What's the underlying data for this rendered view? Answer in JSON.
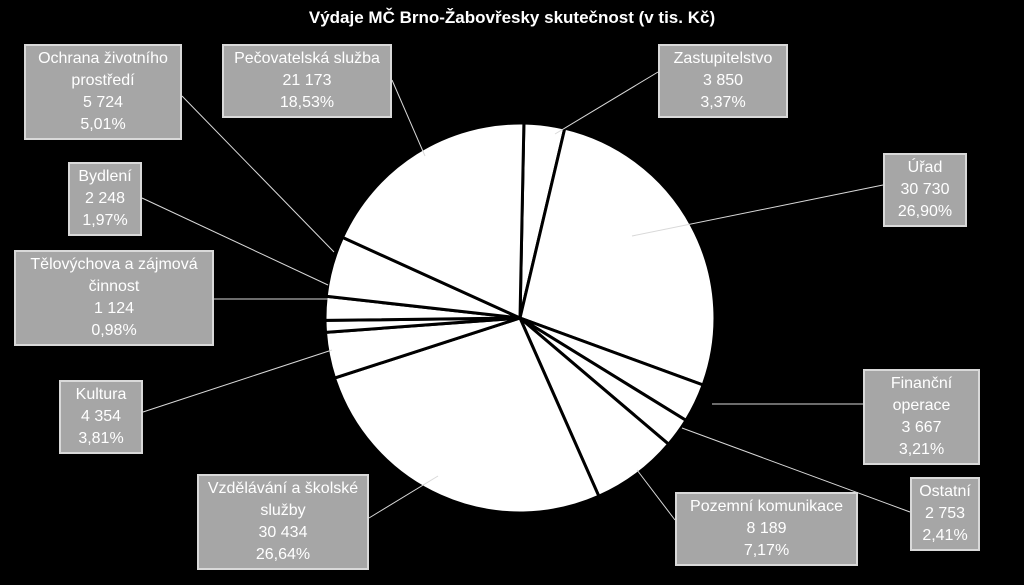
{
  "chart_data": {
    "type": "pie",
    "title": "Výdaje MČ Brno-Žabovřesky skutečnost (v tis. Kč)",
    "slices": [
      {
        "name": "Zastupitelstvo",
        "value_text": "3 850",
        "value": 3850,
        "percent": "3,37%",
        "color": "#ffffff"
      },
      {
        "name": "Úřad",
        "value_text": "30 730",
        "value": 30730,
        "percent": "26,90%",
        "color": "#ffffff"
      },
      {
        "name": "Finanční operace",
        "value_text": "3 667",
        "value": 3667,
        "percent": "3,21%",
        "color": "#ffffff"
      },
      {
        "name": "Ostatní",
        "value_text": "2 753",
        "value": 2753,
        "percent": "2,41%",
        "color": "#ffffff"
      },
      {
        "name": "Pozemní komunikace",
        "value_text": "8 189",
        "value": 8189,
        "percent": "7,17%",
        "color": "#ffffff"
      },
      {
        "name": "Vzdělávání a školské služby",
        "value_text": "30 434",
        "value": 30434,
        "percent": "26,64%",
        "color": "#ffffff"
      },
      {
        "name": "Kultura",
        "value_text": "4 354",
        "value": 4354,
        "percent": "3,81%",
        "color": "#ffffff"
      },
      {
        "name": "Tělovýchova a zájmová činnost",
        "value_text": "1 124",
        "value": 1124,
        "percent": "0,98%",
        "color": "#ffffff"
      },
      {
        "name": "Bydlení",
        "value_text": "2 248",
        "value": 2248,
        "percent": "1,97%",
        "color": "#ffffff"
      },
      {
        "name": "Ochrana životního prostředí",
        "value_text": "5 724",
        "value": 5724,
        "percent": "5,01%",
        "color": "#ffffff"
      },
      {
        "name": "Pečovatelská služba",
        "value_text": "21 173",
        "value": 21173,
        "percent": "18,53%",
        "color": "#ffffff"
      }
    ],
    "label_color": "#a6a6a6",
    "background": "#000000"
  }
}
